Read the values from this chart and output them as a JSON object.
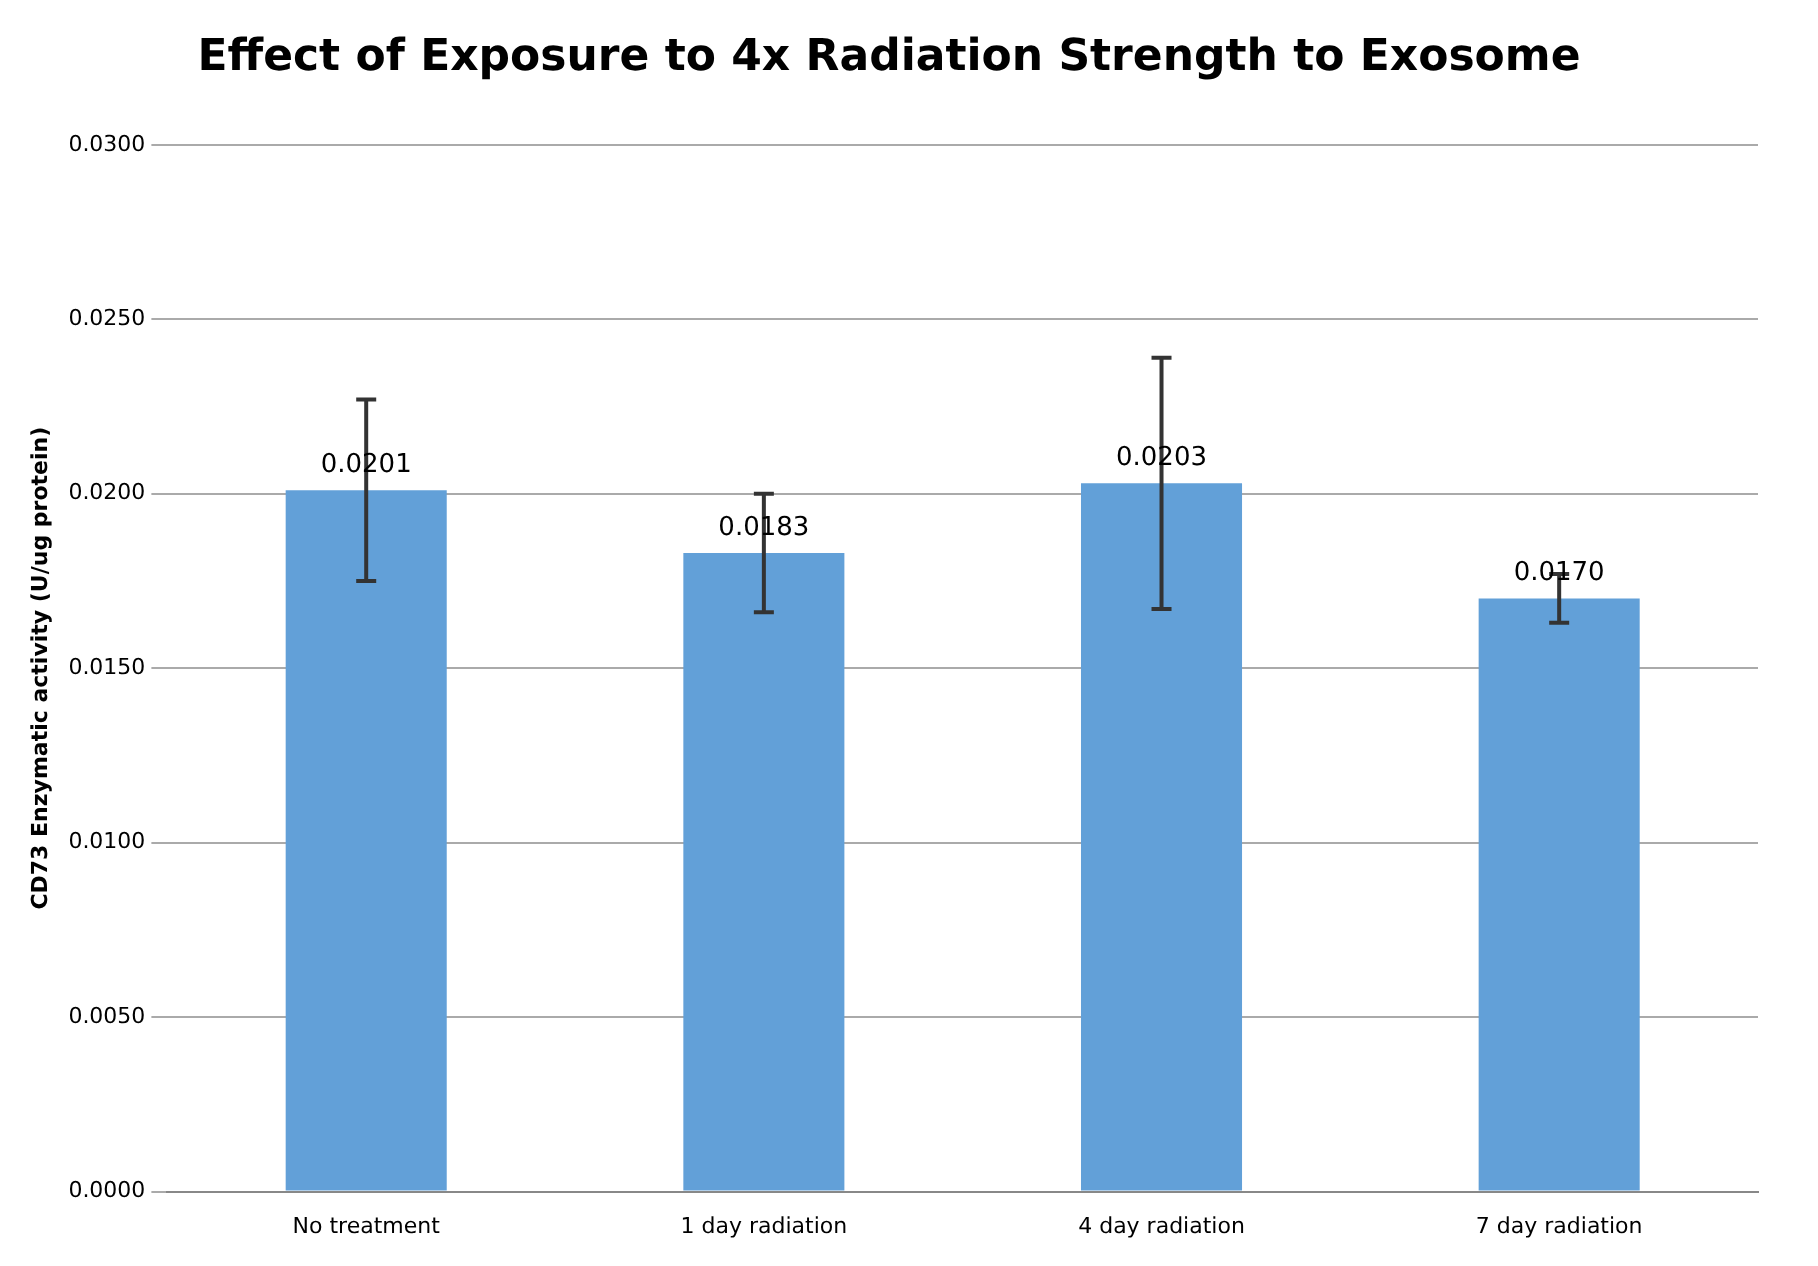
{
  "chart_data": {
    "type": "bar",
    "title": "Effect of Exposure to 4x Radiation Strength to Exosome",
    "ylabel": "CD73 Enzymatic activity (U/ug protein)",
    "categories": [
      "No treatment",
      "1 day radiation",
      "4 day radiation",
      "7 day radiation"
    ],
    "values": [
      0.0201,
      0.0183,
      0.0203,
      0.017
    ],
    "errors": [
      0.0026,
      0.0017,
      0.0036,
      0.0007
    ],
    "value_labels": [
      "0.0201",
      "0.0183",
      "0.0203",
      "0.0170"
    ],
    "color": "#62a0d8",
    "ylim": [
      0,
      0.03
    ],
    "yticks": [
      {
        "value": 0,
        "label": "0.0000"
      },
      {
        "value": 0.005,
        "label": "0.0050"
      },
      {
        "value": 0.01,
        "label": "0.0100"
      },
      {
        "value": 0.015,
        "label": "0.0150"
      },
      {
        "value": 0.02,
        "label": "0.0200"
      },
      {
        "value": 0.025,
        "label": "0.0250"
      },
      {
        "value": 0.03,
        "label": "0.0300"
      }
    ],
    "grid": "y",
    "legend": false
  }
}
